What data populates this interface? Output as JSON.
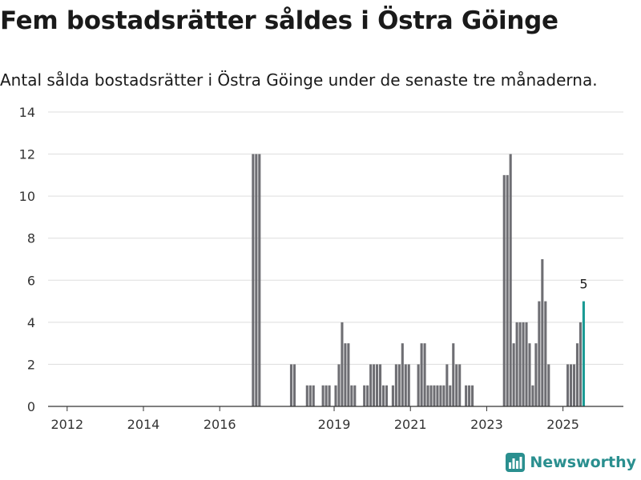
{
  "header": {
    "title": "Fem bostadsrätter såldes i Östra Göinge",
    "subtitle": "Antal sålda bostadsrätter i Östra Göinge under de senaste tre månaderna."
  },
  "brand": {
    "name": "Newsworthy",
    "icon": "bar-chart-icon",
    "color": "#2a8f8f"
  },
  "colors": {
    "bar": "#6e6e73",
    "highlight": "#1a9a94",
    "grid": "#dddddd"
  },
  "chart_data": {
    "type": "bar",
    "title": "Fem bostadsrätter såldes i Östra Göinge",
    "subtitle": "Antal sålda bostadsrätter i Östra Göinge under de senaste tre månaderna.",
    "xlabel": "",
    "ylabel": "",
    "xlim": [
      "2011-07",
      "2026-08"
    ],
    "ylim": [
      0,
      14
    ],
    "yticks": [
      "0",
      "2",
      "4",
      "6",
      "8",
      "10",
      "12",
      "14"
    ],
    "xticks": [
      {
        "label": "2012",
        "at": "2012-01"
      },
      {
        "label": "2014",
        "at": "2014-01"
      },
      {
        "label": "2016",
        "at": "2016-01"
      },
      {
        "label": "2019",
        "at": "2019-01"
      },
      {
        "label": "2021",
        "at": "2021-01"
      },
      {
        "label": "2023",
        "at": "2023-01"
      },
      {
        "label": "2025",
        "at": "2025-01"
      }
    ],
    "grid": true,
    "highlight_label": "5",
    "series": [
      {
        "x": [
          "2016-11",
          "2016-12",
          "2017-01",
          "2017-11",
          "2017-12",
          "2018-04",
          "2018-05",
          "2018-06",
          "2018-09",
          "2018-10",
          "2018-11",
          "2019-01",
          "2019-02",
          "2019-03",
          "2019-04",
          "2019-05",
          "2019-06",
          "2019-07",
          "2019-10",
          "2019-11",
          "2019-12",
          "2020-01",
          "2020-02",
          "2020-03",
          "2020-04",
          "2020-05",
          "2020-07",
          "2020-08",
          "2020-09",
          "2020-10",
          "2020-11",
          "2020-12",
          "2021-03",
          "2021-04",
          "2021-05",
          "2021-06",
          "2021-07",
          "2021-08",
          "2021-09",
          "2021-10",
          "2021-11",
          "2021-12",
          "2022-01",
          "2022-02",
          "2022-03",
          "2022-04",
          "2022-06",
          "2022-07",
          "2022-08",
          "2023-06",
          "2023-07",
          "2023-08",
          "2023-09",
          "2023-10",
          "2023-11",
          "2023-12",
          "2024-01",
          "2024-02",
          "2024-03",
          "2024-04",
          "2024-05",
          "2024-06",
          "2024-07",
          "2024-08",
          "2025-02",
          "2025-03",
          "2025-04",
          "2025-05",
          "2025-06",
          "2025-07"
        ],
        "values": [
          12,
          12,
          12,
          2,
          2,
          1,
          1,
          1,
          1,
          1,
          1,
          1,
          2,
          4,
          3,
          3,
          1,
          1,
          1,
          1,
          2,
          2,
          2,
          2,
          1,
          1,
          1,
          2,
          2,
          3,
          2,
          2,
          2,
          3,
          3,
          1,
          1,
          1,
          1,
          1,
          1,
          2,
          1,
          3,
          2,
          2,
          1,
          1,
          1,
          11,
          11,
          12,
          3,
          4,
          4,
          4,
          4,
          3,
          1,
          3,
          5,
          7,
          5,
          2,
          2,
          2,
          2,
          3,
          4,
          5
        ]
      }
    ]
  }
}
